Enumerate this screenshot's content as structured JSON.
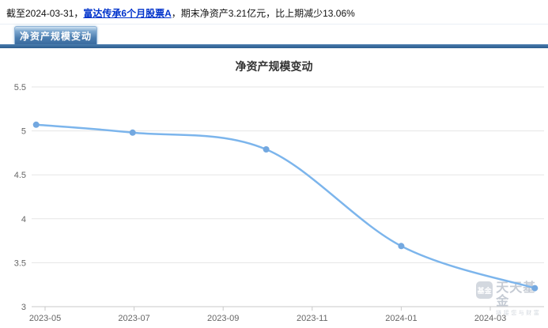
{
  "summary": {
    "prefix": "截至2024-03-31，",
    "fund_name": "富达传承6个月股票A",
    "suffix": "，期末净资产3.21亿元，比上期减少13.06%"
  },
  "tab": {
    "label": "净资产规模变动"
  },
  "chart_data": {
    "type": "line",
    "title": "净资产规模变动",
    "xlabel": "",
    "ylabel": "",
    "points": [
      {
        "date": "2023-04-25",
        "value": 5.07
      },
      {
        "date": "2023-06-30",
        "value": 4.98
      },
      {
        "date": "2023-09-30",
        "value": 4.79
      },
      {
        "date": "2023-12-31",
        "value": 3.69
      },
      {
        "date": "2024-03-31",
        "value": 3.21
      }
    ],
    "x_tick_labels": [
      "2023-05",
      "2023-07",
      "2023-09",
      "2023-11",
      "2024-01",
      "2024-03"
    ],
    "y_ticks": [
      3,
      3.5,
      4,
      4.5,
      5,
      5.5
    ],
    "ylim": [
      3,
      5.5
    ],
    "grid": true,
    "legend": false,
    "line_color": "#7cb5ec",
    "marker_color": "#73a8e0",
    "grid_color": "#e6e6e6",
    "axis_color": "#c9c9c9",
    "tick_label_color": "#666666"
  },
  "watermark": {
    "icon_text": "基金",
    "brand": "天天基金",
    "tagline": "链接您与财富"
  }
}
